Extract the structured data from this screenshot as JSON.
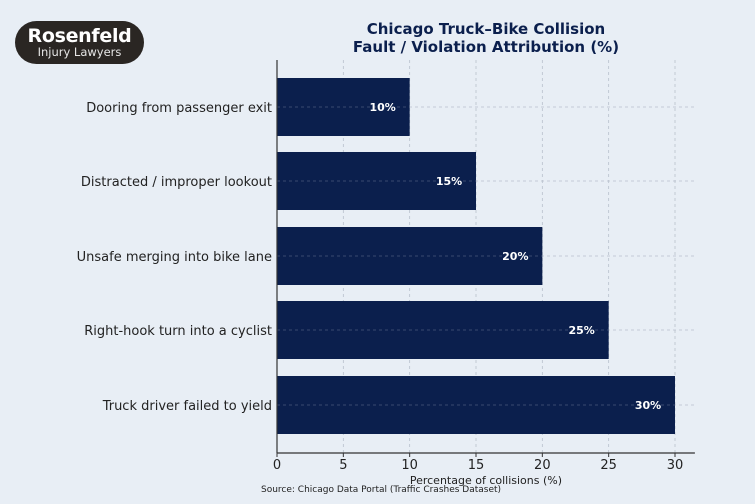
{
  "logo": {
    "name": "Rosenfeld",
    "tagline": "Injury Lawyers"
  },
  "source": "Source: Chicago Data Portal (Traffic Crashes Dataset)",
  "colors": {
    "bar": "#0b1f4d",
    "background": "#e8eef5",
    "title": "#0b1f4d",
    "label": "#ffffff"
  },
  "chart_data": {
    "type": "bar",
    "orientation": "horizontal",
    "title": "Chicago Truck–Bike Collision\nFault / Violation Attribution (%)",
    "title_lines": [
      "Chicago Truck–Bike Collision",
      "Fault / Violation Attribution (%)"
    ],
    "xlabel": "Percentage of collisions (%)",
    "ylabel": "",
    "categories": [
      "Dooring from passenger exit",
      "Distracted / improper lookout",
      "Unsafe merging into bike lane",
      "Right-hook turn into a cyclist",
      "Truck driver failed to yield"
    ],
    "values": [
      10,
      15,
      20,
      25,
      30
    ],
    "data_labels": [
      "10%",
      "15%",
      "20%",
      "25%",
      "30%"
    ],
    "xticks": [
      0,
      5,
      10,
      15,
      20,
      25,
      30
    ],
    "xlim": [
      0,
      31.5
    ],
    "grid": true,
    "legend": "none"
  }
}
